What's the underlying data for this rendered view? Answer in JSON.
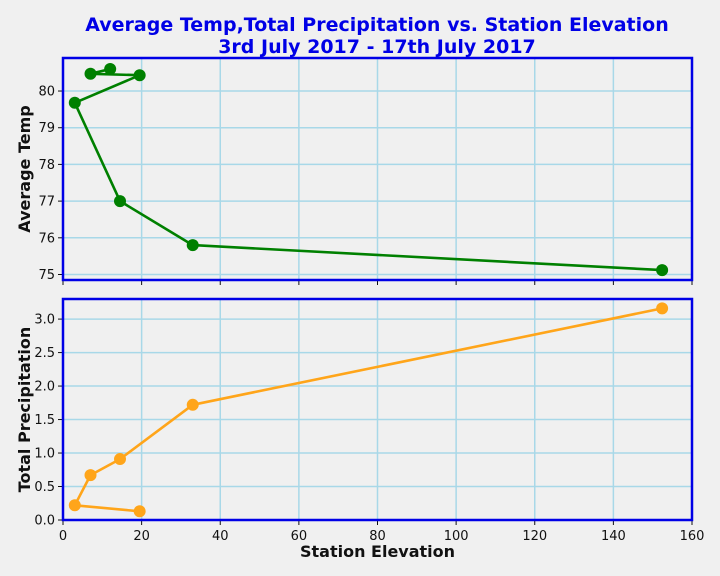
{
  "colors": {
    "background": "#f0f0f0",
    "frame": "#0000e6",
    "title": "#0000e6",
    "grid": "#a8d8e8",
    "temp_series": "#008000",
    "precip_series": "#ffa51a"
  },
  "title_lines": [
    "Average Temp,Total Precipitation vs. Station Elevation",
    "3rd July 2017 - 17th July 2017"
  ],
  "chart_data": [
    {
      "type": "line",
      "xlabel": "",
      "ylabel": "Average Temp",
      "xlim": [
        0,
        160
      ],
      "ylim": [
        74.85,
        80.9
      ],
      "xticks": [
        0,
        20,
        40,
        60,
        80,
        100,
        120,
        140,
        160
      ],
      "yticks": [
        75,
        76,
        77,
        78,
        79,
        80
      ],
      "ytick_labels": [
        "75",
        "76",
        "77",
        "78",
        "79",
        "80"
      ],
      "grid": true,
      "series": [
        {
          "x": [
            12,
            7,
            19.5,
            3,
            14.5,
            33,
            152.4
          ],
          "y": [
            80.6,
            80.47,
            80.43,
            79.68,
            77,
            75.8,
            75.12
          ]
        }
      ]
    },
    {
      "type": "line",
      "xlabel": "Station Elevation",
      "ylabel": "Total Precipitation",
      "xlim": [
        0,
        160
      ],
      "ylim": [
        0,
        3.3
      ],
      "xticks": [
        0,
        20,
        40,
        60,
        80,
        100,
        120,
        140,
        160
      ],
      "xtick_labels": [
        "0",
        "20",
        "40",
        "60",
        "80",
        "100",
        "120",
        "140",
        "160"
      ],
      "yticks": [
        0,
        0.5,
        1,
        1.5,
        2,
        2.5,
        3
      ],
      "ytick_labels": [
        "0.0",
        "0.5",
        "1.0",
        "1.5",
        "2.0",
        "2.5",
        "3.0"
      ],
      "grid": true,
      "series": [
        {
          "x": [
            19.5,
            3,
            7,
            14.5,
            33,
            152.4
          ],
          "y": [
            0.13,
            0.22,
            0.67,
            0.91,
            1.72,
            3.16
          ]
        }
      ]
    }
  ]
}
